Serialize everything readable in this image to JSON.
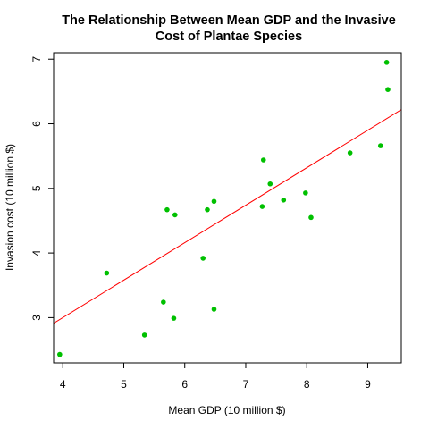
{
  "chart_data": {
    "type": "scatter",
    "title_line1": "The Relationship Between Mean GDP and the Invasive",
    "title_line2": "Cost of Plantae Species",
    "xlabel": "Mean GDP (10 million $)",
    "ylabel": "Invasion cost (10 million $)",
    "xlim": [
      3.85,
      9.55
    ],
    "ylim": [
      2.3,
      7.1
    ],
    "x_ticks": [
      4,
      5,
      6,
      7,
      8,
      9
    ],
    "y_ticks": [
      3,
      4,
      5,
      6,
      7
    ],
    "grid": false,
    "colors": {
      "points": "#00c000",
      "fit_line": "#ff0000",
      "axes": "#000000"
    },
    "points": [
      {
        "x": 3.95,
        "y": 2.43
      },
      {
        "x": 4.72,
        "y": 3.69
      },
      {
        "x": 5.34,
        "y": 2.73
      },
      {
        "x": 5.65,
        "y": 3.24
      },
      {
        "x": 5.71,
        "y": 4.67
      },
      {
        "x": 5.82,
        "y": 2.99
      },
      {
        "x": 5.84,
        "y": 4.59
      },
      {
        "x": 6.3,
        "y": 3.92
      },
      {
        "x": 6.37,
        "y": 4.67
      },
      {
        "x": 6.48,
        "y": 4.8
      },
      {
        "x": 6.48,
        "y": 3.13
      },
      {
        "x": 7.27,
        "y": 4.72
      },
      {
        "x": 7.29,
        "y": 5.44
      },
      {
        "x": 7.4,
        "y": 5.07
      },
      {
        "x": 7.62,
        "y": 4.82
      },
      {
        "x": 7.98,
        "y": 4.93
      },
      {
        "x": 8.07,
        "y": 4.55
      },
      {
        "x": 8.71,
        "y": 5.55
      },
      {
        "x": 9.21,
        "y": 5.66
      },
      {
        "x": 9.31,
        "y": 6.95
      },
      {
        "x": 9.33,
        "y": 6.53
      }
    ],
    "fit_line": {
      "intercept": 0.68,
      "slope": 0.58
    }
  }
}
